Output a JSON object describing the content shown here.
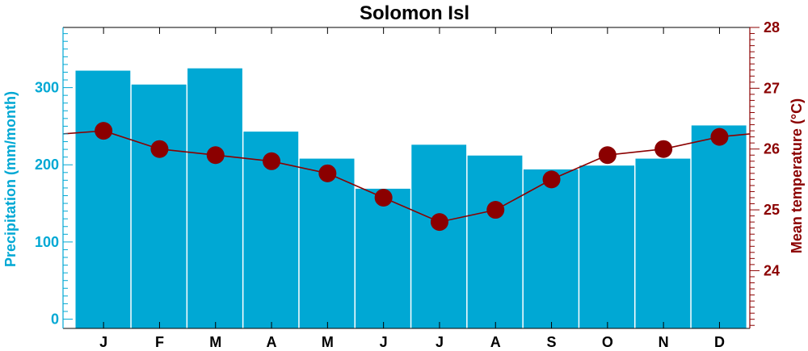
{
  "colors": {
    "precip": "#00a8d4",
    "temp": "#8b0000",
    "frame": "#000000"
  },
  "chart_data": {
    "type": "bar",
    "title": "Solomon Isl",
    "categories": [
      "J",
      "F",
      "M",
      "A",
      "M",
      "J",
      "J",
      "A",
      "S",
      "O",
      "N",
      "D"
    ],
    "series": [
      {
        "type": "bar",
        "axis": "left",
        "values": [
          322,
          304,
          325,
          243,
          208,
          169,
          226,
          212,
          194,
          199,
          208,
          251
        ]
      },
      {
        "type": "line",
        "axis": "right",
        "values": [
          26.3,
          26.0,
          25.9,
          25.8,
          25.6,
          25.2,
          24.8,
          25.0,
          25.5,
          25.9,
          26.0,
          26.2
        ],
        "wrap_start": 26.25,
        "wrap_end": 26.25
      }
    ],
    "y_left": {
      "label": "Precipitation (mm/month)",
      "ylim": [
        -12,
        378
      ],
      "ticks": [
        0,
        100,
        200,
        300
      ],
      "tick_labels": [
        "0",
        "100",
        "200",
        "300"
      ]
    },
    "y_right": {
      "label": "Mean temperature (°C)",
      "ylim": [
        23.05,
        28.0
      ],
      "ticks": [
        24,
        25,
        26,
        27,
        28
      ],
      "tick_labels": [
        "24",
        "25",
        "26",
        "27",
        "28"
      ]
    },
    "legend": "none",
    "grid": false
  }
}
